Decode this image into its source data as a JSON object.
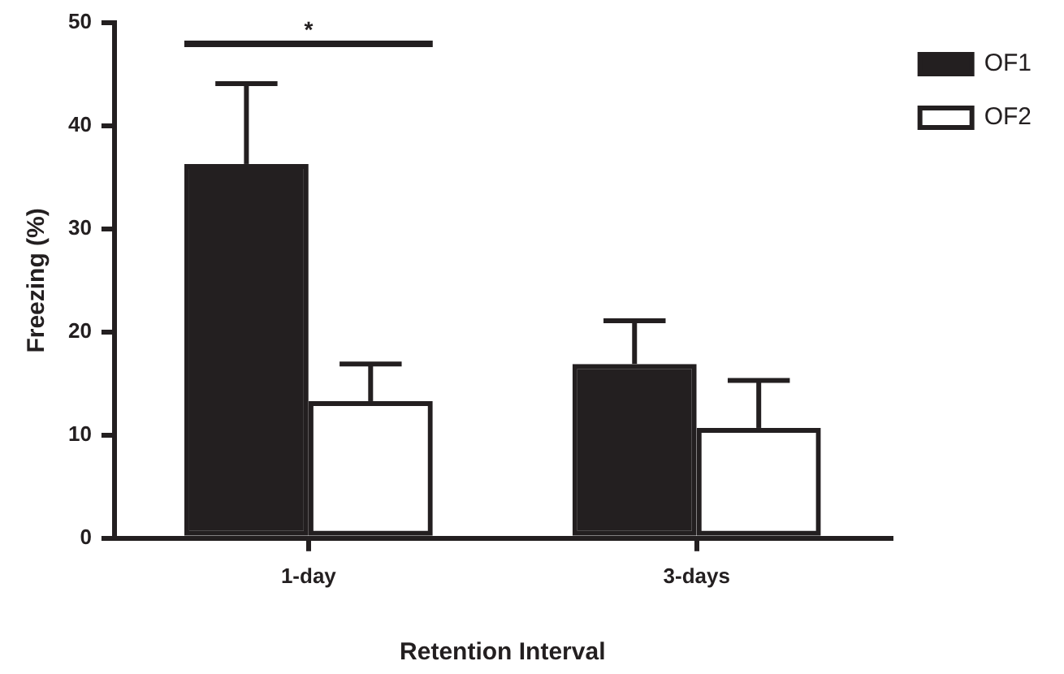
{
  "chart_data": {
    "type": "bar",
    "xlabel": "Retention Interval",
    "ylabel": "Freezing (%)",
    "categories": [
      "1-day",
      "3-days"
    ],
    "series": [
      {
        "name": "OF1",
        "color": "#231f20",
        "values": [
          36.3,
          16.9
        ],
        "errors": [
          [
            36.3,
            44.1
          ],
          [
            16.9,
            21.1
          ]
        ]
      },
      {
        "name": "OF2",
        "color": "#231f20",
        "values": [
          13.3,
          10.7
        ],
        "errors": [
          [
            13.3,
            16.9
          ],
          [
            10.7,
            15.3
          ]
        ]
      }
    ],
    "ylim": [
      0,
      50
    ],
    "yticks": [
      0,
      10,
      20,
      30,
      40,
      50
    ],
    "legend": "top right",
    "annotations": [
      "*"
    ]
  }
}
